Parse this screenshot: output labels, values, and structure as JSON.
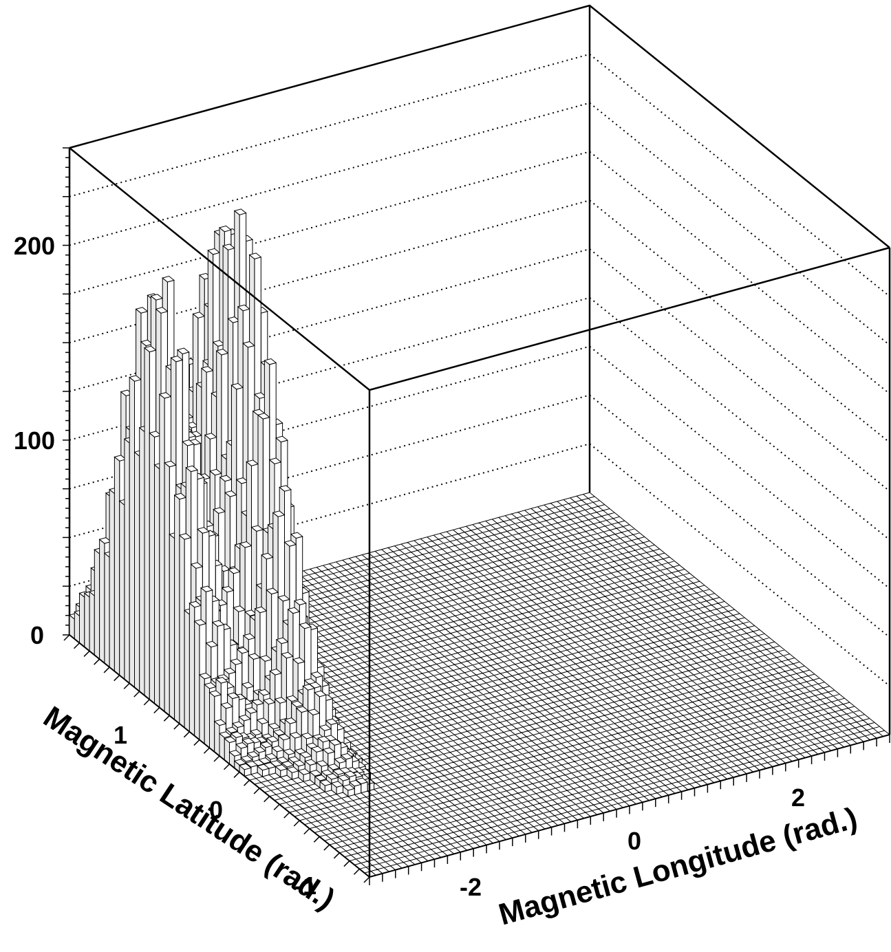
{
  "chart_data": {
    "type": "lego3d",
    "xlabel": "Magnetic Longitude (rad.)",
    "ylabel": "Magnetic Latitude (rad.)",
    "zlabel": "",
    "xlim": [
      -3.14,
      3.14
    ],
    "ylim": [
      -1.57,
      1.57
    ],
    "zlim": [
      0,
      250
    ],
    "x_ticks": [
      -2,
      0,
      2
    ],
    "y_ticks": [
      -1,
      0,
      1
    ],
    "z_ticks": [
      0,
      100,
      200
    ],
    "grid": "z dotted lines on back walls",
    "bins": [
      80,
      60
    ],
    "peaks": [
      {
        "lon": -3.0,
        "lat_center": 0.75,
        "lat_width": 0.35,
        "max": 180
      },
      {
        "lon": -2.3,
        "lat_center": 0.55,
        "lat_width": 0.45,
        "max": 213
      },
      {
        "lon": -2.65,
        "lat_center": 0.65,
        "lat_width": 0.4,
        "max": 60
      }
    ]
  },
  "labels": {
    "z_tick_0": "0",
    "z_tick_100": "100",
    "z_tick_200": "200",
    "x_tick_m2": "-2",
    "x_tick_0": "0",
    "x_tick_2": "2",
    "y_tick_m1": "-1",
    "y_tick_0": "0",
    "y_tick_1": "1",
    "xlabel": "Magnetic Longitude (rad.)",
    "ylabel": "Magnetic Latitude (rad.)"
  }
}
